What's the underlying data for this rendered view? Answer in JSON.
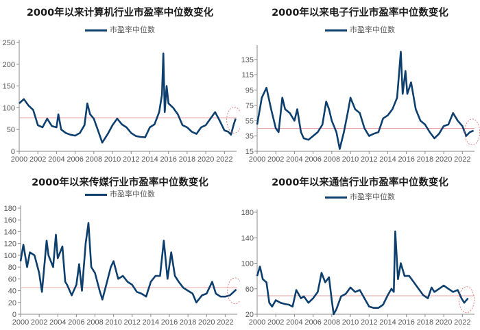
{
  "legend_label": "市盈率中位数",
  "colors": {
    "line": "#0d3f6e",
    "ref_line": "#e8a0a0",
    "axis": "#888888",
    "circle": "#e06060"
  },
  "charts": [
    {
      "title": "2000年以来计算机行业市盈率中位数变化",
      "legend": "市盈率中位数"
    },
    {
      "title": "2000年以来电子行业市盈率中位数变化",
      "legend": "市盈率中位数"
    },
    {
      "title": "2000年以来传媒行业市盈率中位数变化",
      "legend": "市盈率中位数"
    },
    {
      "title": "2000年以来通信行业市盈率中位数变化",
      "legend": "市盈率中位数"
    }
  ],
  "chart_data": [
    {
      "type": "line",
      "title": "2000年以来计算机行业市盈率中位数变化",
      "legend": [
        "市盈率中位数"
      ],
      "xlabel": "",
      "ylabel": "",
      "x_ticks": [
        "2000",
        "2002",
        "2004",
        "2006",
        "2008",
        "2010",
        "2012",
        "2014",
        "2016",
        "2018",
        "2020",
        "2022"
      ],
      "y_ticks": [
        0,
        50,
        100,
        150,
        200,
        250
      ],
      "ylim": [
        0,
        250
      ],
      "reference_line": 77,
      "x": [
        2000,
        2000.5,
        2001,
        2001.5,
        2002,
        2002.5,
        2003,
        2003.5,
        2004,
        2004.2,
        2004.5,
        2005,
        2005.5,
        2006,
        2006.5,
        2007,
        2007.3,
        2007.6,
        2008,
        2008.5,
        2008.9,
        2009.5,
        2010,
        2010.5,
        2011,
        2011.5,
        2012,
        2012.5,
        2013,
        2013.5,
        2014,
        2014.5,
        2015,
        2015.3,
        2015.45,
        2015.6,
        2015.8,
        2016,
        2016.5,
        2017,
        2017.5,
        2018,
        2018.5,
        2019,
        2019.5,
        2020,
        2020.5,
        2021,
        2021.5,
        2022,
        2022.4,
        2022.7,
        2023,
        2023.2
      ],
      "values": [
        110,
        120,
        105,
        95,
        60,
        55,
        75,
        58,
        55,
        85,
        50,
        42,
        38,
        36,
        42,
        60,
        110,
        85,
        75,
        45,
        20,
        40,
        60,
        75,
        62,
        55,
        42,
        35,
        33,
        32,
        55,
        62,
        90,
        130,
        225,
        90,
        150,
        110,
        100,
        85,
        60,
        55,
        45,
        40,
        55,
        60,
        75,
        90,
        70,
        48,
        45,
        38,
        62,
        75
      ]
    },
    {
      "type": "line",
      "title": "2000年以来电子行业市盈率中位数变化",
      "legend": [
        "市盈率中位数"
      ],
      "xlabel": "",
      "ylabel": "",
      "x_ticks": [
        "2000",
        "2002",
        "2004",
        "2006",
        "2008",
        "2010",
        "2012",
        "2014",
        "2016",
        "2018",
        "2020",
        "2022"
      ],
      "y_ticks": [
        15,
        35,
        55,
        75,
        95,
        115,
        135
      ],
      "ylim": [
        15,
        150
      ],
      "reference_line": 45,
      "x": [
        2000,
        2000.5,
        2001,
        2001.5,
        2002,
        2002.3,
        2002.7,
        2003,
        2003.5,
        2004,
        2004.3,
        2004.7,
        2005,
        2005.5,
        2006,
        2006.5,
        2007,
        2007.4,
        2007.7,
        2008,
        2008.5,
        2008.85,
        2009.3,
        2009.7,
        2010,
        2010.5,
        2011,
        2011.5,
        2012,
        2012.5,
        2013,
        2013.5,
        2014,
        2014.5,
        2015,
        2015.4,
        2015.6,
        2015.9,
        2016.1,
        2016.5,
        2017,
        2017.5,
        2018,
        2018.5,
        2019,
        2019.5,
        2020,
        2020.5,
        2021,
        2021.5,
        2022,
        2022.4,
        2022.8,
        2023.2
      ],
      "values": [
        50,
        85,
        98,
        70,
        45,
        40,
        85,
        70,
        65,
        55,
        70,
        40,
        32,
        30,
        35,
        40,
        50,
        80,
        70,
        55,
        40,
        18,
        40,
        65,
        85,
        70,
        65,
        45,
        35,
        38,
        40,
        58,
        62,
        70,
        85,
        145,
        90,
        120,
        90,
        105,
        70,
        55,
        50,
        40,
        32,
        38,
        48,
        50,
        65,
        55,
        48,
        35,
        40,
        42
      ]
    },
    {
      "type": "line",
      "title": "2000年以来传媒行业市盈率中位数变化",
      "legend": [
        "市盈率中位数"
      ],
      "xlabel": "",
      "ylabel": "",
      "x_ticks": [
        "2000",
        "2002",
        "2004",
        "2006",
        "2008",
        "2010",
        "2012",
        "2014",
        "2016",
        "2018",
        "2020",
        "2022"
      ],
      "y_ticks": [
        0,
        20,
        40,
        60,
        80,
        100,
        120,
        140,
        160,
        180
      ],
      "ylim": [
        0,
        180
      ],
      "reference_line": 45,
      "x": [
        2000,
        2000.3,
        2000.7,
        2001,
        2001.5,
        2002,
        2002.3,
        2002.8,
        2003,
        2003.5,
        2003.8,
        2004,
        2004.5,
        2004.8,
        2005,
        2005.5,
        2006,
        2006.3,
        2006.6,
        2007,
        2007.3,
        2007.6,
        2008,
        2008.5,
        2008.8,
        2009.3,
        2009.7,
        2010,
        2010.5,
        2011,
        2011.5,
        2012,
        2012.5,
        2013,
        2013.5,
        2014,
        2014.5,
        2015,
        2015.4,
        2015.8,
        2016.2,
        2016.6,
        2017,
        2017.5,
        2018,
        2018.5,
        2018.9,
        2019.5,
        2020,
        2020.6,
        2021,
        2021.5,
        2022,
        2022.5,
        2023.2
      ],
      "values": [
        90,
        118,
        80,
        105,
        100,
        70,
        38,
        125,
        100,
        80,
        135,
        95,
        115,
        55,
        50,
        32,
        50,
        85,
        40,
        120,
        155,
        80,
        70,
        40,
        25,
        55,
        80,
        90,
        60,
        65,
        55,
        50,
        38,
        35,
        30,
        55,
        65,
        65,
        125,
        60,
        105,
        65,
        55,
        45,
        40,
        35,
        20,
        32,
        35,
        55,
        35,
        30,
        30,
        32,
        42
      ]
    },
    {
      "type": "line",
      "title": "2000年以来通信行业市盈率中位数变化",
      "legend": [
        "市盈率中位数"
      ],
      "xlabel": "",
      "ylabel": "",
      "x_ticks": [
        "2000",
        "2002",
        "2004",
        "2006",
        "2008",
        "2010",
        "2012",
        "2014",
        "2016",
        "2018",
        "2020",
        "2022"
      ],
      "y_ticks": [
        20,
        60,
        100,
        140,
        180
      ],
      "ylim": [
        20,
        180
      ],
      "reference_line": 49,
      "x": [
        2000,
        2000.3,
        2000.6,
        2001,
        2001.3,
        2001.6,
        2002,
        2002.5,
        2003,
        2003.4,
        2003.8,
        2004.2,
        2004.7,
        2005,
        2005.5,
        2006,
        2006.5,
        2006.9,
        2007.3,
        2007.7,
        2008,
        2008.2,
        2008.5,
        2009,
        2009.5,
        2010,
        2010.5,
        2011,
        2011.5,
        2012,
        2012.5,
        2013,
        2013.5,
        2014,
        2014.4,
        2014.65,
        2014.8,
        2015.1,
        2015.4,
        2015.8,
        2016.3,
        2016.8,
        2017.3,
        2017.8,
        2018.3,
        2018.7,
        2019,
        2019.5,
        2020,
        2020.5,
        2021,
        2021.5,
        2021.9,
        2022.2,
        2022.6
      ],
      "values": [
        80,
        95,
        75,
        70,
        38,
        32,
        42,
        38,
        36,
        35,
        32,
        58,
        45,
        48,
        38,
        45,
        55,
        85,
        70,
        78,
        42,
        20,
        28,
        48,
        52,
        62,
        55,
        58,
        45,
        32,
        30,
        30,
        35,
        50,
        60,
        55,
        150,
        75,
        100,
        80,
        80,
        70,
        60,
        50,
        45,
        62,
        55,
        60,
        65,
        60,
        55,
        58,
        45,
        38,
        45
      ]
    }
  ]
}
